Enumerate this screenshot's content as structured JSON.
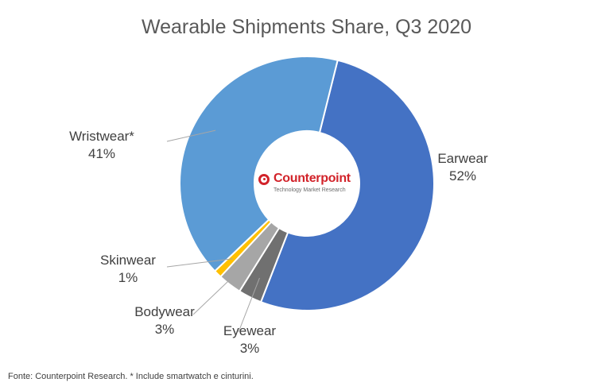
{
  "chart_data": {
    "type": "pie",
    "title": "Wearable Shipments Share, Q3 2020",
    "labels": [
      "Earwear",
      "Eyewear",
      "Bodywear",
      "Skinwear",
      "Wristwear*"
    ],
    "values": [
      52,
      3,
      3,
      1,
      41
    ],
    "value_labels": [
      "52%",
      "3%",
      "3%",
      "1%",
      "41%"
    ],
    "colors": [
      "#4472c4",
      "#707070",
      "#a6a6a6",
      "#ffc000",
      "#5b9bd5"
    ],
    "donut": true,
    "center_logo": {
      "name": "Counterpoint",
      "tagline": "Technology Market Research"
    }
  },
  "footer": {
    "source_note": "Fonte: Counterpoint Research. * Include smartwatch e cinturini."
  }
}
